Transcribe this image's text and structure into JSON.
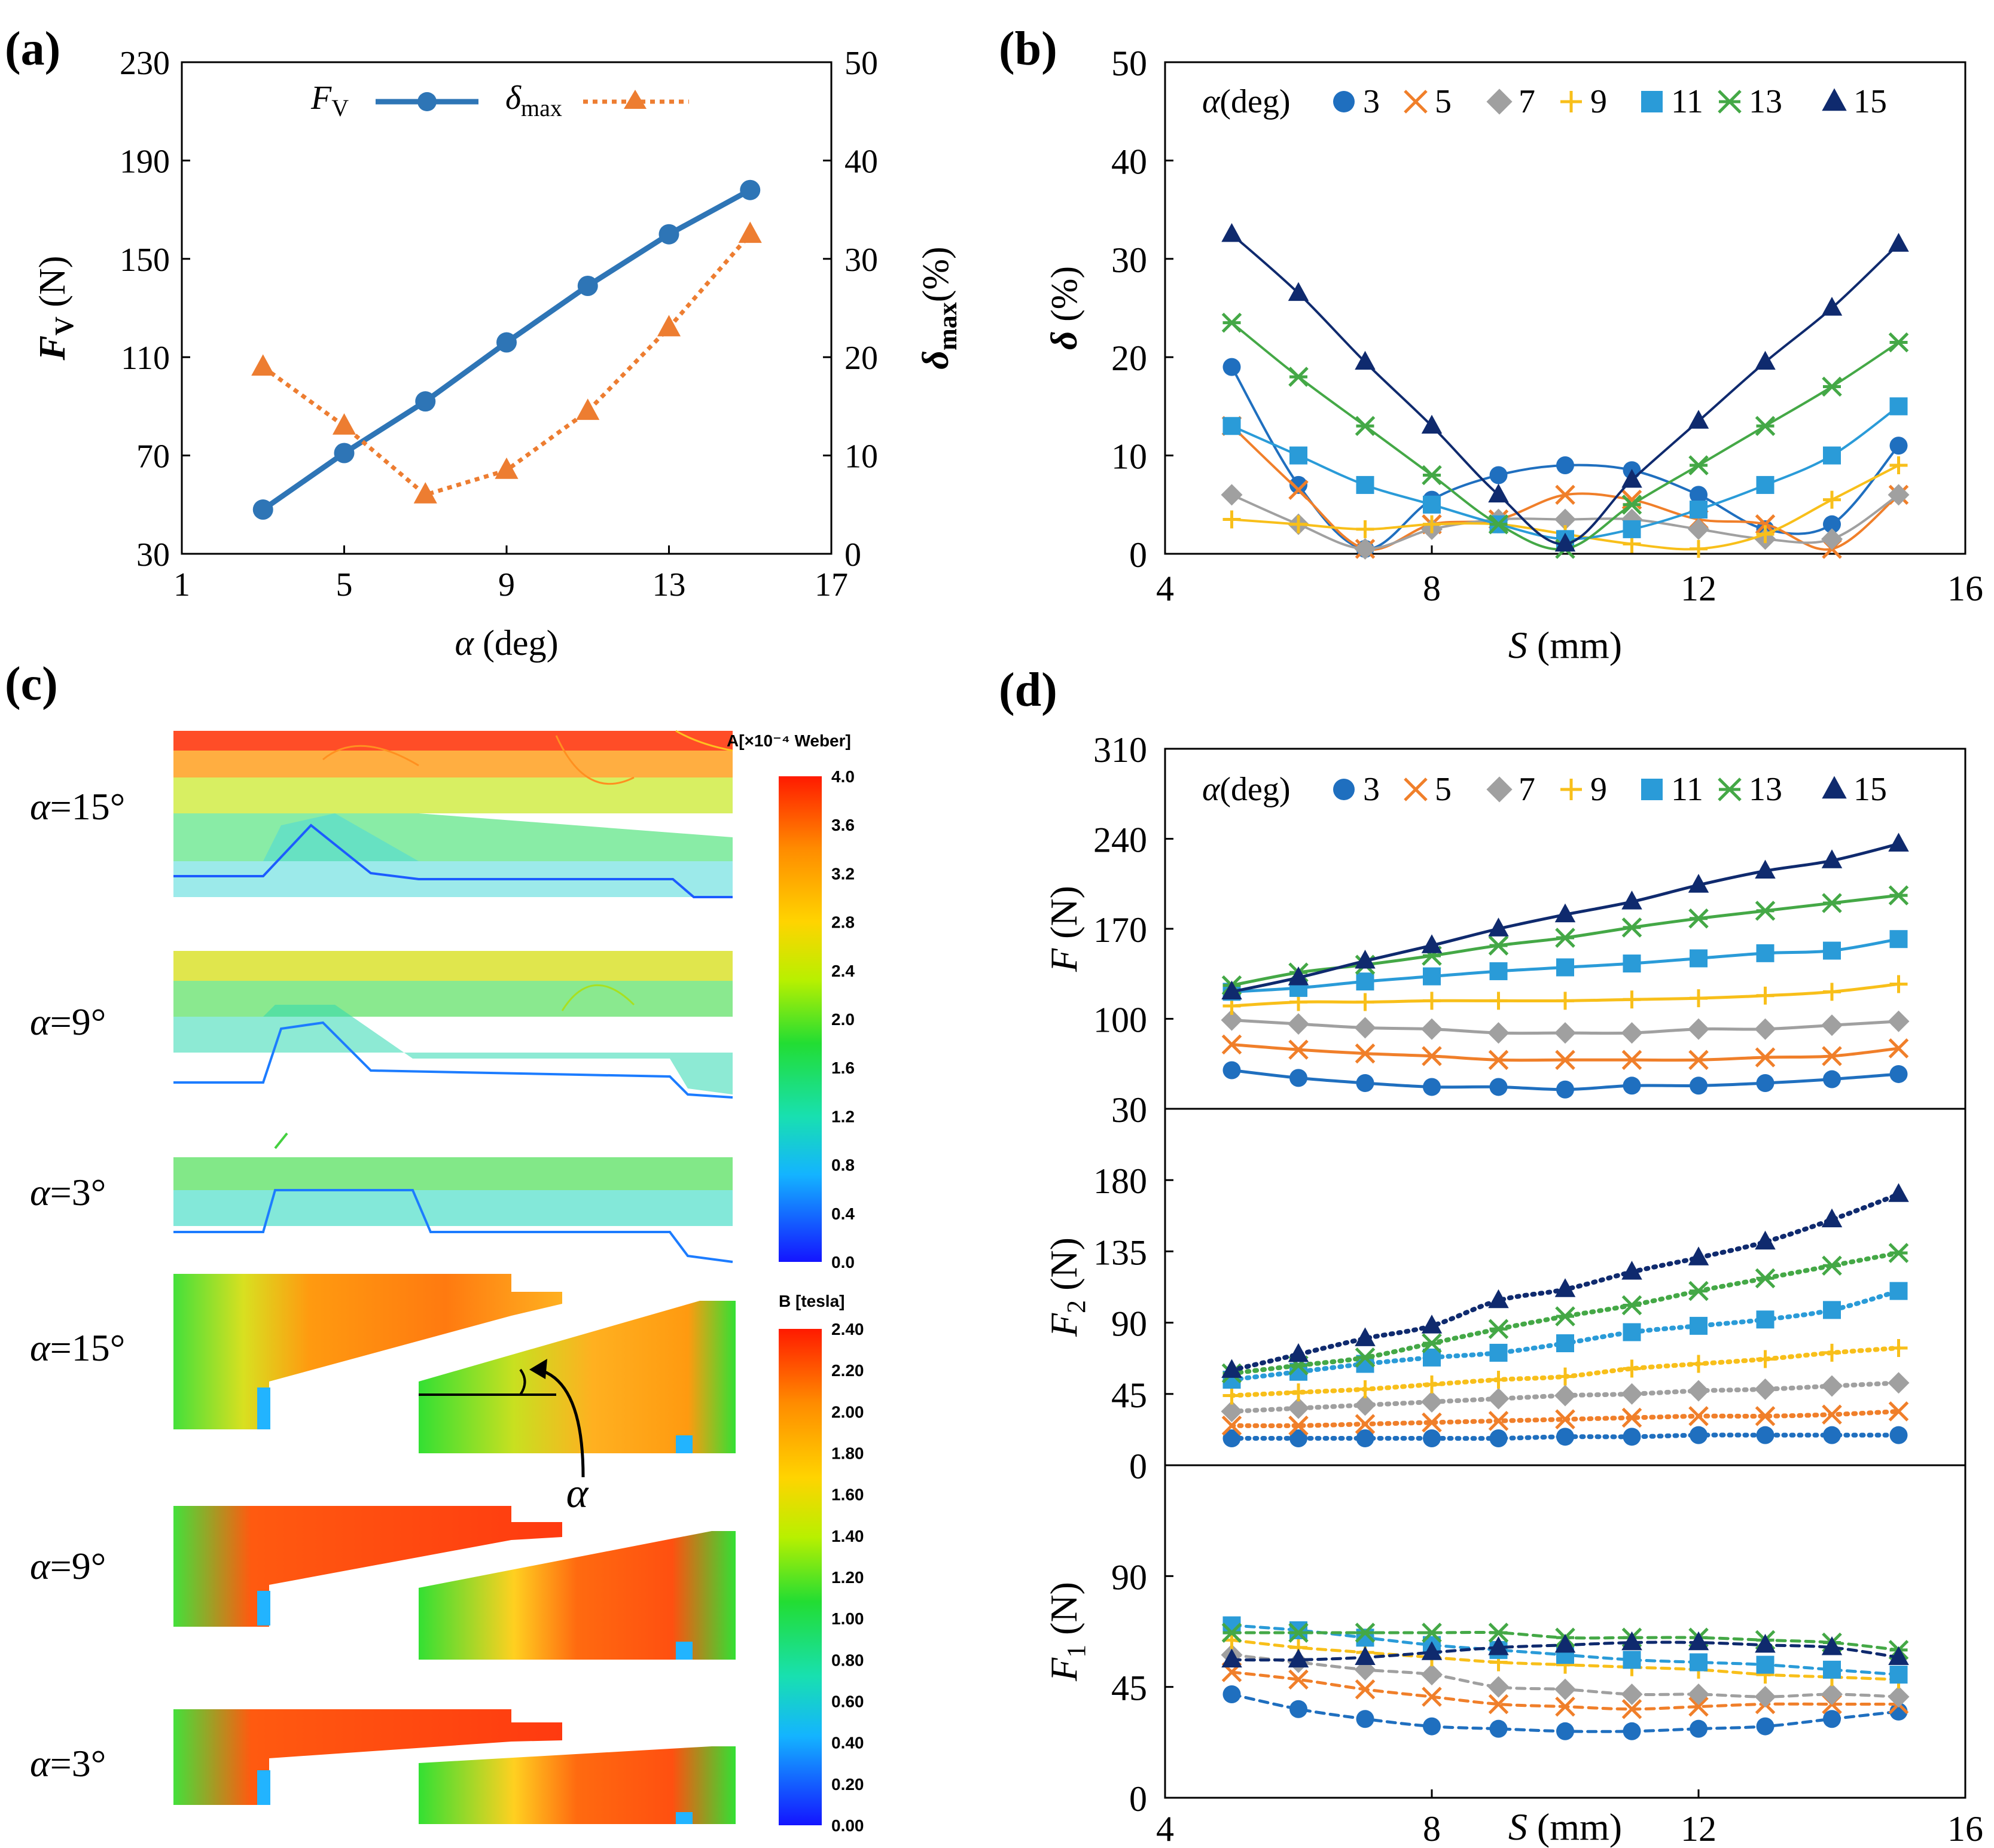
{
  "panel_labels": {
    "a": "(a)",
    "b": "(b)",
    "c": "(c)",
    "d": "(d)"
  },
  "colors": {
    "a3": "#1F6FBF",
    "a5": "#F07F2A",
    "a7": "#A0A0A0",
    "a9": "#F8BF1A",
    "a11": "#2A9BD8",
    "a13": "#44A846",
    "a15": "#0F2A6E",
    "fv": "#2E75B6",
    "dmax": "#ED7D31"
  },
  "chart_data": [
    {
      "id": "a",
      "type": "line",
      "xlabel": "α (deg)",
      "ylabel_left": "F_V (N)",
      "ylabel_right": "δ_max (%)",
      "xlim": [
        1,
        17
      ],
      "xticks": [
        "1",
        "5",
        "9",
        "13",
        "17"
      ],
      "ylim_left": [
        30,
        230
      ],
      "yticks_left": [
        "30",
        "70",
        "110",
        "150",
        "190",
        "230"
      ],
      "ylim_right": [
        0,
        50
      ],
      "yticks_right": [
        "0",
        "10",
        "20",
        "30",
        "40",
        "50"
      ],
      "legend": {
        "fv": "F_V",
        "dmax": "δ_max"
      },
      "series": [
        {
          "name": "F_V",
          "axis": "left",
          "x": [
            3,
            5,
            7,
            9,
            11,
            13,
            15
          ],
          "values": [
            48,
            71,
            92,
            116,
            139,
            160,
            178
          ]
        },
        {
          "name": "δ_max",
          "axis": "right",
          "x": [
            3,
            5,
            7,
            9,
            11,
            13,
            15
          ],
          "values": [
            19,
            13,
            6,
            8.5,
            14.5,
            23,
            32.5
          ]
        }
      ]
    },
    {
      "id": "b",
      "type": "line",
      "xlabel": "S (mm)",
      "ylabel": "δ (%)",
      "xlim": [
        4,
        16
      ],
      "xticks": [
        "4",
        "8",
        "12",
        "16"
      ],
      "ylim": [
        0,
        50
      ],
      "yticks": [
        "0",
        "10",
        "20",
        "30",
        "40",
        "50"
      ],
      "legend_title": "α (deg)",
      "x": [
        5,
        6,
        7,
        8,
        9,
        10,
        11,
        12,
        13,
        14,
        15
      ],
      "series": [
        {
          "name": "3",
          "values": [
            19,
            7,
            0.5,
            5.5,
            8,
            9,
            8.5,
            6,
            2.5,
            3,
            11
          ]
        },
        {
          "name": "5",
          "values": [
            13,
            6.5,
            0.5,
            3,
            3.5,
            6,
            5.5,
            3.5,
            3,
            0.5,
            6
          ]
        },
        {
          "name": "7",
          "values": [
            6,
            3,
            0.5,
            2.5,
            3.5,
            3.5,
            3.5,
            2.5,
            1.5,
            1.5,
            6
          ]
        },
        {
          "name": "9",
          "values": [
            3.5,
            3,
            2.5,
            3,
            3,
            2,
            1,
            0.5,
            2,
            5.5,
            9
          ]
        },
        {
          "name": "11",
          "values": [
            13,
            10,
            7,
            5,
            3,
            1.5,
            2.5,
            4.5,
            7,
            10,
            15
          ]
        },
        {
          "name": "13",
          "values": [
            23.5,
            18,
            13,
            8,
            3,
            0.5,
            5,
            9,
            13,
            17,
            21.5
          ]
        },
        {
          "name": "15",
          "values": [
            32.5,
            26.5,
            19.5,
            13,
            6,
            1,
            7.5,
            13.5,
            19.5,
            25,
            31.5
          ]
        }
      ]
    },
    {
      "id": "d",
      "type": "line",
      "xlabel": "S (mm)",
      "xlim": [
        4,
        16
      ],
      "xticks": [
        "4",
        "8",
        "12",
        "16"
      ],
      "legend_title": "α (deg)",
      "x": [
        5,
        6,
        7,
        8,
        9,
        10,
        11,
        12,
        13,
        14,
        15
      ],
      "subplots": [
        {
          "ylabel": "F (N)",
          "ylim": [
            30,
            310
          ],
          "yticks": [
            "30",
            "100",
            "170",
            "240",
            "310"
          ],
          "style": "solid",
          "series": [
            {
              "name": "3",
              "values": [
                60,
                54,
                50,
                47,
                47,
                45,
                48,
                48,
                50,
                53,
                57
              ]
            },
            {
              "name": "5",
              "values": [
                80,
                76,
                73,
                71,
                68,
                68,
                68,
                68,
                70,
                71,
                77
              ]
            },
            {
              "name": "7",
              "values": [
                99,
                96,
                93,
                92,
                89,
                89,
                89,
                92,
                92,
                95,
                98
              ]
            },
            {
              "name": "9",
              "values": [
                110,
                113,
                113,
                114,
                114,
                114,
                115,
                116,
                118,
                121,
                127
              ]
            },
            {
              "name": "11",
              "values": [
                121,
                124,
                129,
                133,
                137,
                140,
                143,
                147,
                151,
                153,
                162
              ]
            },
            {
              "name": "13",
              "values": [
                126,
                136,
                142,
                149,
                157,
                163,
                171,
                178,
                184,
                190,
                196
              ]
            },
            {
              "name": "15",
              "values": [
                121,
                132,
                145,
                157,
                170,
                181,
                191,
                204,
                215,
                223,
                236
              ]
            }
          ]
        },
        {
          "ylabel": "F_2 (N)",
          "ylim": [
            0,
            225
          ],
          "yticks": [
            "0",
            "45",
            "90",
            "135",
            "180"
          ],
          "style": "dotted",
          "series": [
            {
              "name": "3",
              "values": [
                17,
                17,
                17,
                17,
                17,
                18,
                18,
                19,
                19,
                19,
                19
              ]
            },
            {
              "name": "5",
              "values": [
                25,
                25,
                26,
                27,
                28,
                29,
                30,
                31,
                31,
                32,
                34
              ]
            },
            {
              "name": "7",
              "values": [
                34,
                36,
                38,
                40,
                42,
                44,
                45,
                47,
                48,
                50,
                52
              ]
            },
            {
              "name": "9",
              "values": [
                44,
                46,
                48,
                51,
                54,
                56,
                61,
                64,
                67,
                71,
                74
              ]
            },
            {
              "name": "11",
              "values": [
                54,
                59,
                64,
                68,
                71,
                77,
                84,
                88,
                92,
                98,
                110
              ]
            },
            {
              "name": "13",
              "values": [
                58,
                63,
                68,
                77,
                86,
                94,
                101,
                110,
                118,
                126,
                134
              ]
            },
            {
              "name": "15",
              "values": [
                60,
                70,
                80,
                88,
                104,
                111,
                122,
                131,
                141,
                155,
                171
              ]
            }
          ]
        },
        {
          "ylabel": "F_1 (N)",
          "ylim": [
            0,
            135
          ],
          "yticks": [
            "0",
            "45",
            "90"
          ],
          "style": "dashed",
          "series": [
            {
              "name": "3",
              "values": [
                42,
                36,
                32,
                29,
                28,
                27,
                27,
                28,
                29,
                32,
                35
              ]
            },
            {
              "name": "5",
              "values": [
                51,
                48,
                44,
                41,
                38,
                37,
                36,
                37,
                38,
                38,
                38
              ]
            },
            {
              "name": "7",
              "values": [
                58,
                55,
                52,
                50,
                45,
                44,
                42,
                42,
                41,
                42,
                41
              ]
            },
            {
              "name": "9",
              "values": [
                64,
                61,
                59,
                57,
                55,
                54,
                53,
                52,
                50,
                49,
                48
              ]
            },
            {
              "name": "11",
              "values": [
                70,
                68,
                65,
                62,
                60,
                58,
                56,
                55,
                54,
                52,
                50
              ]
            },
            {
              "name": "13",
              "values": [
                67,
                67,
                67,
                67,
                67,
                65,
                65,
                65,
                64,
                63,
                60
              ]
            },
            {
              "name": "15",
              "values": [
                56,
                56,
                57,
                59,
                61,
                62,
                63,
                63,
                62,
                61,
                57
              ]
            }
          ]
        }
      ]
    }
  ],
  "panel_c": {
    "flux_labels": [
      "α=15°",
      "α=9°",
      "α=3°"
    ],
    "field_labels": [
      "α=15°",
      "α=9°",
      "α=3°"
    ],
    "arrow_label": "α",
    "flux_legend": {
      "title": "A[×10⁻⁴ Weber]",
      "ticks": [
        "4.0",
        "3.6",
        "3.2",
        "2.8",
        "2.4",
        "2.0",
        "1.6",
        "1.2",
        "0.8",
        "0.4",
        "0.0"
      ]
    },
    "field_legend": {
      "title": "B [tesla]",
      "ticks": [
        "2.40",
        "2.20",
        "2.00",
        "1.80",
        "1.60",
        "1.40",
        "1.20",
        "1.00",
        "0.80",
        "0.60",
        "0.40",
        "0.20",
        "0.00"
      ]
    }
  }
}
